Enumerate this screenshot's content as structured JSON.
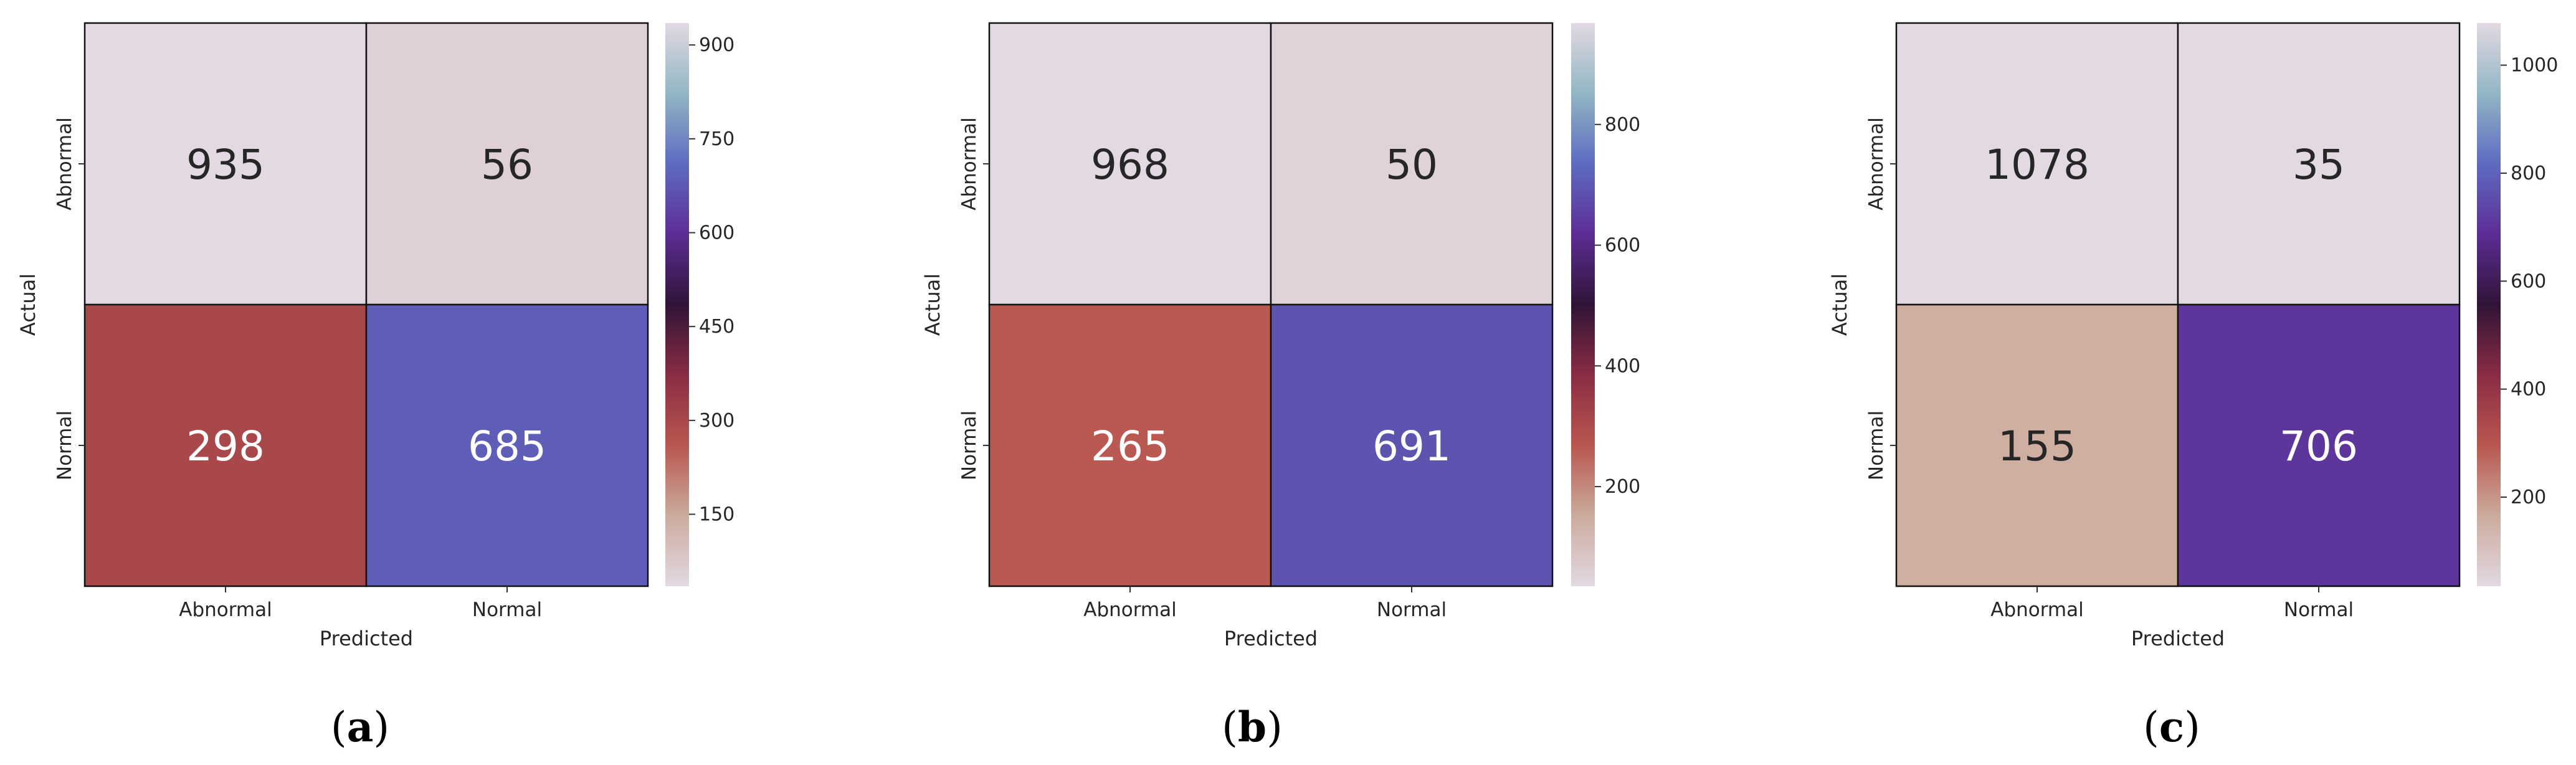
{
  "chart_data": [
    {
      "type": "heatmap",
      "panel_label": "a",
      "x_categories": [
        "Abnormal",
        "Normal"
      ],
      "y_categories": [
        "Abnormal",
        "Normal"
      ],
      "values": [
        [
          935,
          56
        ],
        [
          298,
          685
        ]
      ],
      "xlabel": "Predicted",
      "ylabel": "Actual",
      "colorbar": {
        "range": [
          35,
          935
        ],
        "ticks": [
          "150",
          "300",
          "450",
          "600",
          "750",
          "900"
        ]
      },
      "colormap": "twilight",
      "grid": true
    },
    {
      "type": "heatmap",
      "panel_label": "b",
      "x_categories": [
        "Abnormal",
        "Normal"
      ],
      "y_categories": [
        "Abnormal",
        "Normal"
      ],
      "values": [
        [
          968,
          50
        ],
        [
          265,
          691
        ]
      ],
      "xlabel": "Predicted",
      "ylabel": "Actual",
      "colorbar": {
        "range": [
          35,
          968
        ],
        "ticks": [
          "200",
          "400",
          "600",
          "800"
        ]
      },
      "colormap": "twilight",
      "grid": true
    },
    {
      "type": "heatmap",
      "panel_label": "c",
      "x_categories": [
        "Abnormal",
        "Normal"
      ],
      "y_categories": [
        "Abnormal",
        "Normal"
      ],
      "values": [
        [
          1078,
          35
        ],
        [
          155,
          706
        ]
      ],
      "xlabel": "Predicted",
      "ylabel": "Actual",
      "colorbar": {
        "range": [
          35,
          1078
        ],
        "ticks": [
          "200",
          "400",
          "600",
          "800",
          "1000"
        ]
      },
      "colormap": "twilight",
      "grid": true
    }
  ]
}
